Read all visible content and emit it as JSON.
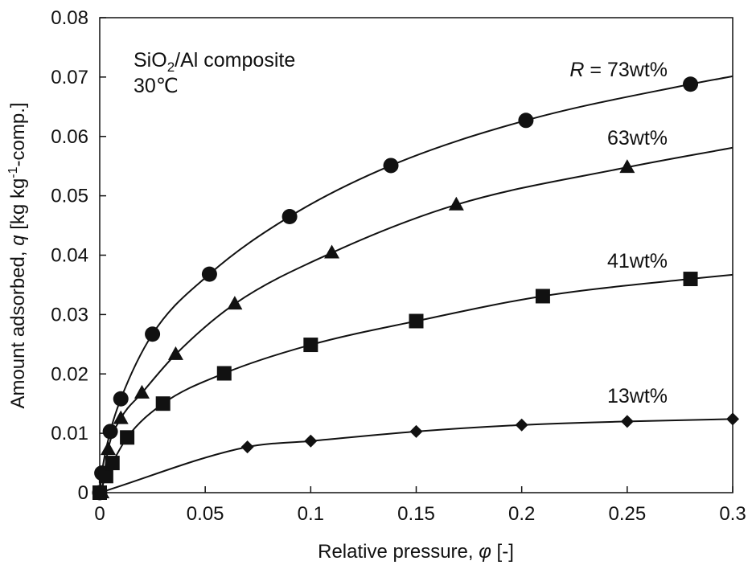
{
  "chart_data": {
    "type": "scatter",
    "xlabel": "Relative pressure, φ  [-]",
    "ylabel": "Amount adsorbed, q  [kg kg-1-comp.]",
    "xlim": [
      0,
      0.3
    ],
    "ylim": [
      0,
      0.08
    ],
    "x_ticks": [
      "0",
      "0.05",
      "0.1",
      "0.15",
      "0.2",
      "0.25",
      "0.3"
    ],
    "y_ticks": [
      "0",
      "0.01",
      "0.02",
      "0.03",
      "0.04",
      "0.05",
      "0.06",
      "0.07",
      "0.08"
    ],
    "grid": false,
    "annotations": {
      "material": "SiO2/Al composite",
      "temperature": "30℃"
    },
    "series": [
      {
        "name": "R = 73wt%",
        "label_var": "R",
        "label_rest": " = 73wt%",
        "marker": "circle",
        "x": [
          0.0,
          0.001,
          0.005,
          0.01,
          0.025,
          0.052,
          0.09,
          0.138,
          0.202,
          0.28
        ],
        "y": [
          0.0,
          0.0033,
          0.0103,
          0.0158,
          0.0267,
          0.0368,
          0.0465,
          0.0551,
          0.0627,
          0.0688
        ]
      },
      {
        "name": "63wt%",
        "marker": "triangle",
        "x": [
          0.001,
          0.004,
          0.01,
          0.02,
          0.036,
          0.064,
          0.11,
          0.169,
          0.25
        ],
        "y": [
          0.0,
          0.0073,
          0.0125,
          0.0168,
          0.0233,
          0.0318,
          0.0404,
          0.0485,
          0.0548
        ]
      },
      {
        "name": "41wt%",
        "marker": "square",
        "x": [
          0.0,
          0.003,
          0.006,
          0.013,
          0.03,
          0.059,
          0.1,
          0.15,
          0.21,
          0.28
        ],
        "y": [
          0.0,
          0.0028,
          0.005,
          0.0093,
          0.015,
          0.0201,
          0.0249,
          0.0289,
          0.0331,
          0.036
        ]
      },
      {
        "name": "13wt%",
        "marker": "diamond",
        "x": [
          0.0,
          0.07,
          0.1,
          0.15,
          0.2,
          0.25,
          0.3
        ],
        "y": [
          0.0,
          0.0077,
          0.0087,
          0.0103,
          0.0114,
          0.012,
          0.0124
        ]
      }
    ]
  }
}
